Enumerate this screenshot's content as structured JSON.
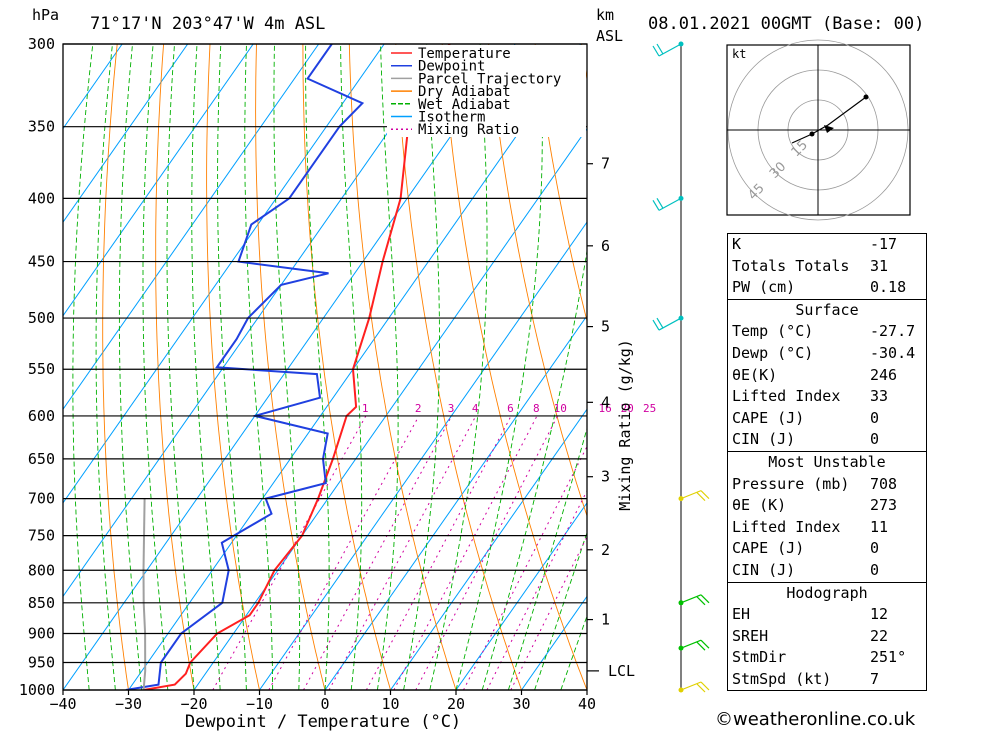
{
  "header": {
    "hpa_label": "hPa",
    "location": "71°17'N  203°47'W  4m  ASL",
    "km_label": "km",
    "asl_label": "ASL",
    "datetime": "08.01.2021  00GMT  (Base: 00)"
  },
  "footer": {
    "copyright": "©weatheronline.co.uk"
  },
  "colors": {
    "temperature": "#ff2020",
    "dewpoint": "#2040e0",
    "parcel": "#a0a0a0",
    "dry_adiabat": "#ff8000",
    "wet_adiabat": "#00b000",
    "isotherm": "#00a0ff",
    "mixing_ratio": "#d000a0",
    "wind_barb_upper": "#00c0c0",
    "wind_barb_mid": "#e0d000",
    "wind_barb_low": "#00c000"
  },
  "chart_data": [
    {
      "type": "line",
      "subtype": "skew-T log-P sounding",
      "xlabel": "Dewpoint / Temperature (°C)",
      "ylabel": "hPa",
      "right_axis_label": "Mixing Ratio (g/kg)",
      "x_ticks": [
        -40,
        -30,
        -20,
        -10,
        0,
        10,
        20,
        30,
        40
      ],
      "x_tick_labels": [
        "−40",
        "−30",
        "−20",
        "−10",
        "0",
        "10",
        "20",
        "30",
        "40"
      ],
      "p_ticks": [
        300,
        350,
        400,
        450,
        500,
        550,
        600,
        650,
        700,
        750,
        800,
        850,
        900,
        950,
        1000
      ],
      "xlim": [
        -40,
        40
      ],
      "plim": [
        1000,
        300
      ],
      "km_ticks": [
        {
          "km": 1,
          "p": 877
        },
        {
          "km": 2,
          "p": 770
        },
        {
          "km": 3,
          "p": 672
        },
        {
          "km": 4,
          "p": 585
        },
        {
          "km": 5,
          "p": 508
        },
        {
          "km": 6,
          "p": 437
        },
        {
          "km": 7,
          "p": 375
        }
      ],
      "lcl_label": "LCL",
      "lcl_p": 965,
      "mixing_ratio_labels": [
        "1",
        "2",
        "3",
        "4",
        "6",
        "8",
        "10",
        "16",
        "20",
        "25"
      ],
      "mixing_ratio_values": [
        1,
        2,
        3,
        4,
        6,
        8,
        10,
        16,
        20,
        25
      ],
      "legend": [
        {
          "name": "Temperature",
          "key": "temperature"
        },
        {
          "name": "Dewpoint",
          "key": "dewpoint"
        },
        {
          "name": "Parcel Trajectory",
          "key": "parcel"
        },
        {
          "name": "Dry Adiabat",
          "key": "dry_adiabat"
        },
        {
          "name": "Wet Adiabat",
          "key": "wet_adiabat"
        },
        {
          "name": "Isotherm",
          "key": "isotherm"
        },
        {
          "name": "Mixing Ratio",
          "key": "mixing_ratio"
        }
      ],
      "series": [
        {
          "name": "Temperature",
          "points": [
            [
              1000,
              -27.7
            ],
            [
              990,
              -23.5
            ],
            [
              970,
              -23
            ],
            [
              950,
              -23.5
            ],
            [
              900,
              -22.5
            ],
            [
              870,
              -19.5
            ],
            [
              850,
              -19.5
            ],
            [
              800,
              -20.5
            ],
            [
              750,
              -20
            ],
            [
              700,
              -21.5
            ],
            [
              650,
              -23.5
            ],
            [
              600,
              -26
            ],
            [
              590,
              -25.5
            ],
            [
              550,
              -30
            ],
            [
              500,
              -33
            ],
            [
              450,
              -37
            ],
            [
              400,
              -41
            ],
            [
              350,
              -47.5
            ],
            [
              318,
              -51
            ],
            [
              310,
              -50
            ],
            [
              300,
              -50
            ]
          ]
        },
        {
          "name": "Dewpoint",
          "points": [
            [
              1000,
              -30.4
            ],
            [
              990,
              -26
            ],
            [
              950,
              -28
            ],
            [
              900,
              -28
            ],
            [
              850,
              -25
            ],
            [
              800,
              -27.5
            ],
            [
              760,
              -31.5
            ],
            [
              720,
              -27
            ],
            [
              700,
              -29.5
            ],
            [
              680,
              -22
            ],
            [
              650,
              -25
            ],
            [
              620,
              -27
            ],
            [
              600,
              -40
            ],
            [
              580,
              -32
            ],
            [
              555,
              -35
            ],
            [
              548,
              -51
            ],
            [
              520,
              -51
            ],
            [
              500,
              -51.5
            ],
            [
              470,
              -50
            ],
            [
              460,
              -44
            ],
            [
              450,
              -59
            ],
            [
              420,
              -61
            ],
            [
              400,
              -58
            ],
            [
              350,
              -58
            ],
            [
              335,
              -57
            ],
            [
              320,
              -68
            ],
            [
              300,
              -68
            ]
          ]
        },
        {
          "name": "Parcel Trajectory",
          "points": [
            [
              1000,
              -27.7
            ],
            [
              965,
              -29.5
            ],
            [
              900,
              -33.5
            ],
            [
              850,
              -37
            ],
            [
              800,
              -40.5
            ],
            [
              700,
              -48
            ]
          ]
        }
      ]
    },
    {
      "type": "scatter",
      "subtype": "hodograph",
      "unit_label": "kt",
      "ring_labels": [
        "15",
        "30",
        "45"
      ]
    }
  ],
  "wind_barbs": [
    {
      "p": 300,
      "color_key": "wind_barb_upper"
    },
    {
      "p": 400,
      "color_key": "wind_barb_upper"
    },
    {
      "p": 500,
      "color_key": "wind_barb_upper"
    },
    {
      "p": 700,
      "color_key": "wind_barb_mid"
    },
    {
      "p": 850,
      "color_key": "wind_barb_low"
    },
    {
      "p": 925,
      "color_key": "wind_barb_low"
    },
    {
      "p": 1000,
      "color_key": "wind_barb_mid"
    }
  ],
  "indices": {
    "k_label": "K",
    "k_value": "-17",
    "tt_label": "Totals Totals",
    "tt_value": "31",
    "pw_label": "PW (cm)",
    "pw_value": "0.18"
  },
  "surface": {
    "title": "Surface",
    "temp_label": "Temp (°C)",
    "temp_value": "-27.7",
    "dewp_label": "Dewp (°C)",
    "dewp_value": "-30.4",
    "thetae_label": "θE(K)",
    "thetae_value": "246",
    "li_label": "Lifted Index",
    "li_value": "33",
    "cape_label": "CAPE (J)",
    "cape_value": "0",
    "cin_label": "CIN (J)",
    "cin_value": "0"
  },
  "most_unstable": {
    "title": "Most Unstable",
    "pressure_label": "Pressure (mb)",
    "pressure_value": "708",
    "thetae_label": "θE (K)",
    "thetae_value": "273",
    "li_label": "Lifted Index",
    "li_value": "11",
    "cape_label": "CAPE (J)",
    "cape_value": "0",
    "cin_label": "CIN (J)",
    "cin_value": "0"
  },
  "hodograph": {
    "title": "Hodograph",
    "eh_label": "EH",
    "eh_value": "12",
    "sreh_label": "SREH",
    "sreh_value": "22",
    "stmdir_label": "StmDir",
    "stmdir_value": "251°",
    "stmspd_label": "StmSpd (kt)",
    "stmspd_value": "7"
  }
}
